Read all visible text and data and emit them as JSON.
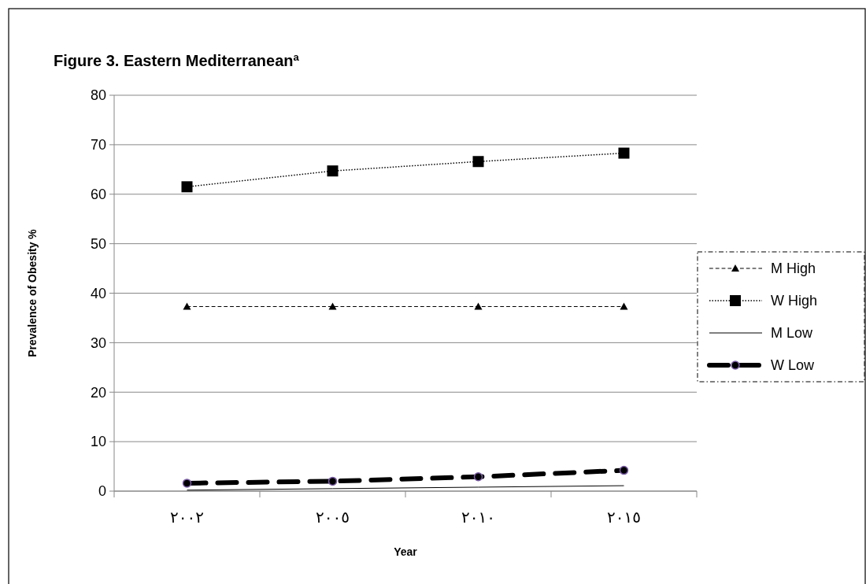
{
  "chart_data": {
    "type": "line",
    "title": "Figure 3. Eastern Mediterranean$^{a}$",
    "xlabel": "Year",
    "ylabel": "Prevalence of Obesity %",
    "categories": [
      "٢٠٠٢",
      "٢٠٠٥",
      "٢٠١٠",
      "٢٠١٥"
    ],
    "series": [
      {
        "name": "M High",
        "color": "#000000",
        "values": [
          37.3,
          37.3,
          37.3,
          37.3
        ],
        "line_style": "dashed",
        "marker": "triangle"
      },
      {
        "name": "W High",
        "color": "#000000",
        "values": [
          61.5,
          64.7,
          66.6,
          68.3
        ],
        "line_style": "dotted",
        "marker": "square"
      },
      {
        "name": "M Low",
        "color": "#000000",
        "values": [
          0.2,
          0.5,
          0.8,
          1.1
        ],
        "line_style": "solid",
        "marker": "none"
      },
      {
        "name": "W Low",
        "color": "#000000",
        "values": [
          1.6,
          2.0,
          2.9,
          4.2
        ],
        "line_style": "dashed",
        "marker": "circle"
      }
    ],
    "ylim": [
      0,
      80
    ],
    "yticks": [
      0,
      10,
      20,
      30,
      40,
      50,
      60,
      70,
      80
    ],
    "grid": "y",
    "legend": "right"
  }
}
